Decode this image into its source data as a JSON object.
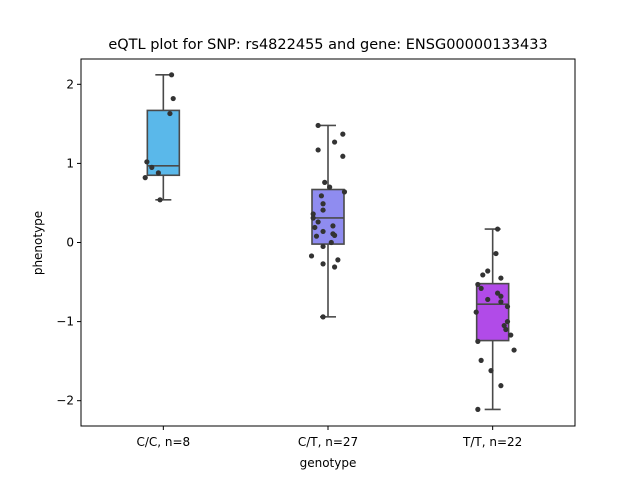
{
  "chart_data": {
    "type": "box",
    "title": "eQTL plot for SNP: rs4822455 and gene: ENSG00000133433",
    "xlabel": "genotype",
    "ylabel": "phenotype",
    "categories": [
      "C/C, n=8",
      "C/T, n=27",
      "T/T, n=22"
    ],
    "ylim": [
      -2.32,
      2.32
    ],
    "yticks": [
      {
        "value": 2,
        "label": "2"
      },
      {
        "value": 1,
        "label": "1"
      },
      {
        "value": 0,
        "label": "0"
      },
      {
        "value": -1,
        "label": "−1"
      },
      {
        "value": -2,
        "label": "−2"
      }
    ],
    "grid": false,
    "series": [
      {
        "category": "C/C, n=8",
        "color": "#5ab8ea",
        "box": {
          "q1": 0.85,
          "median": 0.97,
          "q3": 1.67,
          "whisker_low": 0.54,
          "whisker_high": 2.12
        },
        "points": [
          {
            "x": 0.05,
            "y": 2.12
          },
          {
            "x": 0.06,
            "y": 1.82
          },
          {
            "x": 0.04,
            "y": 1.63
          },
          {
            "x": -0.1,
            "y": 1.02
          },
          {
            "x": -0.07,
            "y": 0.95
          },
          {
            "x": -0.11,
            "y": 0.82
          },
          {
            "x": -0.03,
            "y": 0.88
          },
          {
            "x": -0.02,
            "y": 0.54
          }
        ]
      },
      {
        "category": "C/T, n=27",
        "color": "#8f8cf0",
        "box": {
          "q1": -0.02,
          "median": 0.31,
          "q3": 0.67,
          "whisker_low": -0.94,
          "whisker_high": 1.48
        },
        "points": [
          {
            "x": -0.06,
            "y": 1.48
          },
          {
            "x": 0.09,
            "y": 1.37
          },
          {
            "x": 0.04,
            "y": 1.27
          },
          {
            "x": -0.06,
            "y": 1.17
          },
          {
            "x": 0.09,
            "y": 1.09
          },
          {
            "x": -0.02,
            "y": 0.76
          },
          {
            "x": 0.01,
            "y": 0.7
          },
          {
            "x": 0.1,
            "y": 0.64
          },
          {
            "x": -0.04,
            "y": 0.59
          },
          {
            "x": -0.03,
            "y": 0.49
          },
          {
            "x": -0.03,
            "y": 0.41
          },
          {
            "x": -0.09,
            "y": 0.36
          },
          {
            "x": -0.09,
            "y": 0.31
          },
          {
            "x": -0.06,
            "y": 0.26
          },
          {
            "x": 0.03,
            "y": 0.21
          },
          {
            "x": -0.08,
            "y": 0.19
          },
          {
            "x": -0.03,
            "y": 0.14
          },
          {
            "x": 0.03,
            "y": 0.11
          },
          {
            "x": 0.04,
            "y": 0.09
          },
          {
            "x": -0.07,
            "y": 0.08
          },
          {
            "x": 0.02,
            "y": 0.0
          },
          {
            "x": -0.03,
            "y": -0.05
          },
          {
            "x": -0.1,
            "y": -0.17
          },
          {
            "x": 0.06,
            "y": -0.22
          },
          {
            "x": -0.03,
            "y": -0.27
          },
          {
            "x": 0.04,
            "y": -0.31
          },
          {
            "x": -0.03,
            "y": -0.94
          }
        ]
      },
      {
        "category": "T/T, n=22",
        "color": "#b14be8",
        "box": {
          "q1": -1.24,
          "median": -0.78,
          "q3": -0.52,
          "whisker_low": -2.11,
          "whisker_high": 0.17
        },
        "points": [
          {
            "x": 0.03,
            "y": 0.17
          },
          {
            "x": 0.02,
            "y": -0.14
          },
          {
            "x": -0.03,
            "y": -0.36
          },
          {
            "x": -0.06,
            "y": -0.41
          },
          {
            "x": 0.05,
            "y": -0.45
          },
          {
            "x": -0.09,
            "y": -0.53
          },
          {
            "x": -0.07,
            "y": -0.58
          },
          {
            "x": 0.03,
            "y": -0.64
          },
          {
            "x": 0.05,
            "y": -0.68
          },
          {
            "x": -0.03,
            "y": -0.72
          },
          {
            "x": 0.05,
            "y": -0.75
          },
          {
            "x": 0.09,
            "y": -0.81
          },
          {
            "x": -0.1,
            "y": -0.88
          },
          {
            "x": 0.09,
            "y": -1.0
          },
          {
            "x": 0.07,
            "y": -1.05
          },
          {
            "x": 0.08,
            "y": -1.1
          },
          {
            "x": 0.11,
            "y": -1.17
          },
          {
            "x": -0.09,
            "y": -1.25
          },
          {
            "x": 0.13,
            "y": -1.36
          },
          {
            "x": -0.07,
            "y": -1.49
          },
          {
            "x": -0.01,
            "y": -1.62
          },
          {
            "x": 0.05,
            "y": -1.81
          }
        ]
      }
    ],
    "outliers": [
      {
        "category": "T/T, n=22",
        "x": -0.09,
        "y": -2.11
      }
    ]
  }
}
